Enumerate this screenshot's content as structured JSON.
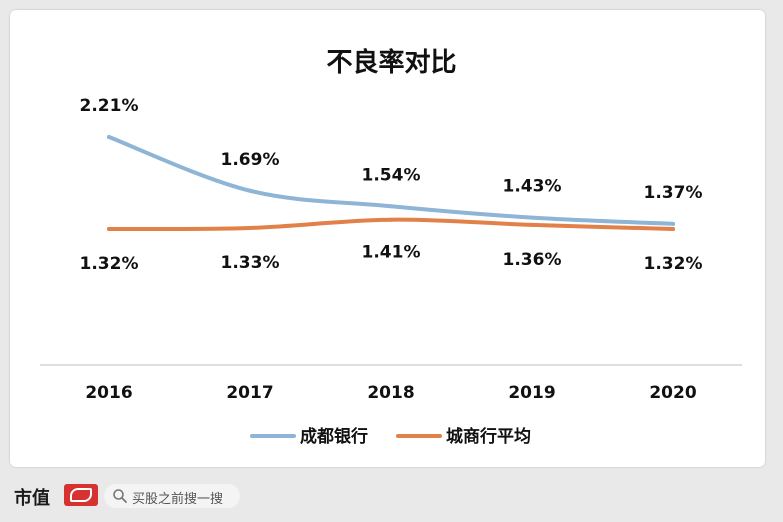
{
  "chart_data": {
    "type": "line",
    "title": "不良率对比",
    "x": [
      "2016",
      "2017",
      "2018",
      "2019",
      "2020"
    ],
    "series": [
      {
        "name": "成都银行",
        "values": [
          2.21,
          1.69,
          1.54,
          1.43,
          1.37
        ],
        "labels": [
          "2.21%",
          "1.69%",
          "1.54%",
          "1.43%",
          "1.37%"
        ],
        "color": "#8eb4d6"
      },
      {
        "name": "城商行平均",
        "values": [
          1.32,
          1.33,
          1.41,
          1.36,
          1.32
        ],
        "labels": [
          "1.32%",
          "1.33%",
          "1.41%",
          "1.36%",
          "1.32%"
        ],
        "color": "#e2804a"
      }
    ],
    "legend": "bottom",
    "grid": false
  },
  "footer": {
    "brand": "市值",
    "search_placeholder": "买股之前搜一搜",
    "search_icon": "search-icon"
  }
}
